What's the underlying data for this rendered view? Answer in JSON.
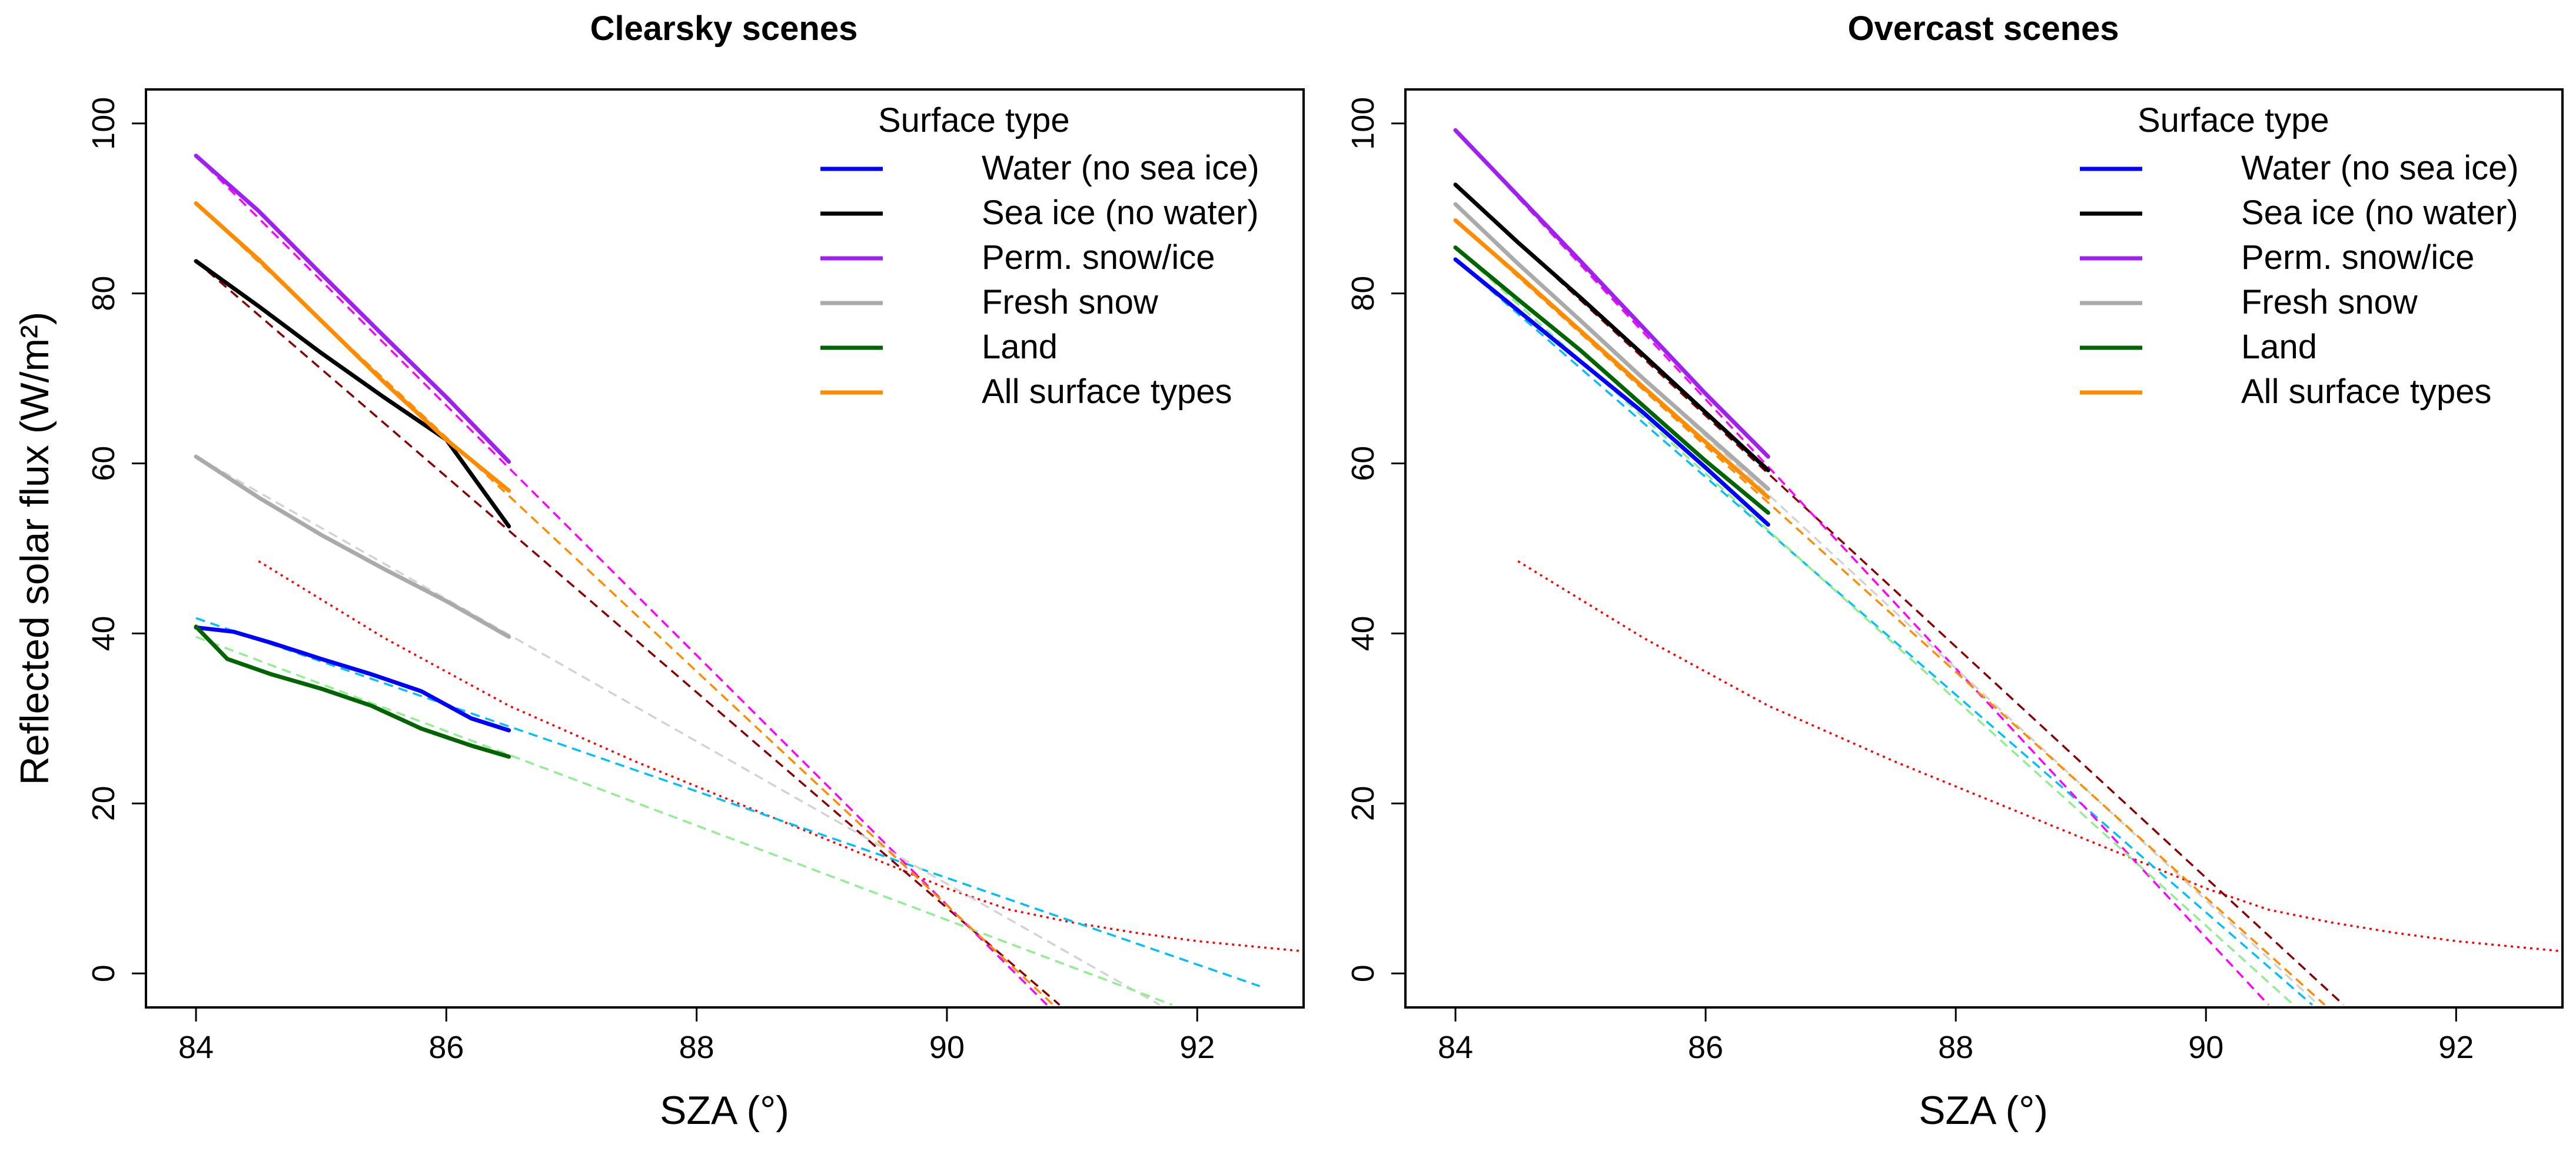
{
  "chart_data": [
    {
      "type": "line",
      "title": "Clearsky scenes",
      "xlabel": "SZA (°)",
      "ylabel": "Reflected solar flux (W/m²)",
      "xlim": [
        83.6,
        92.85
      ],
      "ylim": [
        -4,
        104
      ],
      "xticks": [
        84,
        86,
        88,
        90,
        92
      ],
      "yticks": [
        0,
        20,
        40,
        60,
        80,
        100
      ],
      "legend_title": "Surface type",
      "legend_position": "top-right",
      "series": [
        {
          "name": "Water (no sea ice)",
          "color": "#0000ff",
          "fit_color": "#00bfff",
          "x": [
            84.0,
            84.3,
            84.6,
            85.0,
            85.4,
            85.8,
            86.2,
            86.5
          ],
          "y": [
            40.7,
            40.2,
            38.9,
            37.0,
            35.2,
            33.2,
            30.0,
            28.6
          ],
          "fit_x": [
            84.0,
            92.5
          ],
          "fit_y": [
            41.8,
            -1.5
          ]
        },
        {
          "name": "Sea ice (no water)",
          "color": "#000000",
          "fit_color": "#8b0000",
          "x": [
            84.0,
            84.5,
            85.0,
            85.5,
            86.0,
            86.5
          ],
          "y": [
            83.8,
            78.5,
            73.0,
            67.8,
            62.8,
            52.6
          ],
          "fit_x": [
            84.0,
            90.9
          ],
          "fit_y": [
            83.8,
            -3.7
          ]
        },
        {
          "name": "Perm. snow/ice",
          "color": "#a020f0",
          "fit_color": "#ff00ff",
          "x": [
            84.0,
            84.5,
            85.0,
            85.5,
            86.0,
            86.5
          ],
          "y": [
            96.2,
            89.7,
            82.3,
            75.0,
            67.8,
            60.2
          ],
          "fit_x": [
            84.0,
            90.8
          ],
          "fit_y": [
            96.2,
            -3.7
          ]
        },
        {
          "name": "Fresh snow",
          "color": "#aaaaaa",
          "fit_color": "#d3d3d3",
          "x": [
            84.0,
            84.5,
            85.0,
            85.5,
            86.0,
            86.5
          ],
          "y": [
            60.8,
            56.0,
            51.6,
            47.6,
            43.8,
            39.6
          ],
          "fit_x": [
            84.0,
            91.7
          ],
          "fit_y": [
            60.8,
            -3.7
          ]
        },
        {
          "name": "Land",
          "color": "#006400",
          "fit_color": "#90ee90",
          "x": [
            84.0,
            84.25,
            84.6,
            85.0,
            85.4,
            85.8,
            86.2,
            86.5
          ],
          "y": [
            40.8,
            37.0,
            35.2,
            33.5,
            31.5,
            28.8,
            26.8,
            25.5
          ],
          "fit_x": [
            84.0,
            91.8
          ],
          "fit_y": [
            39.6,
            -3.7
          ]
        },
        {
          "name": "All surface types",
          "color": "#ff8c00",
          "fit_color": "#ff8c00",
          "x": [
            84.0,
            84.5,
            85.0,
            85.5,
            86.0,
            86.5
          ],
          "y": [
            90.6,
            84.0,
            76.8,
            69.6,
            62.8,
            56.8
          ],
          "fit_x": [
            84.0,
            90.85
          ],
          "fit_y": [
            90.6,
            -3.7
          ]
        }
      ],
      "reference_curve": {
        "color": "#ff0000",
        "x": [
          84.5,
          85.5,
          86.5,
          87.5,
          88.5,
          89.5,
          90.0,
          90.5,
          91.0,
          91.5,
          92.0,
          92.85
        ],
        "y": [
          48.5,
          39.5,
          31.5,
          25.0,
          19.0,
          13.0,
          10.0,
          7.5,
          6.0,
          4.8,
          3.8,
          2.6
        ]
      }
    },
    {
      "type": "line",
      "title": "Overcast scenes",
      "xlabel": "SZA (°)",
      "ylabel": "",
      "xlim": [
        83.6,
        92.85
      ],
      "ylim": [
        -4,
        104
      ],
      "xticks": [
        84,
        86,
        88,
        90,
        92
      ],
      "yticks": [
        0,
        20,
        40,
        60,
        80,
        100
      ],
      "legend_title": "Surface type",
      "legend_position": "top-right",
      "series": [
        {
          "name": "Water (no sea ice)",
          "color": "#0000ff",
          "fit_color": "#00bfff",
          "x": [
            84.0,
            84.5,
            85.0,
            85.5,
            86.0,
            86.5
          ],
          "y": [
            84.0,
            78.0,
            72.0,
            66.0,
            59.5,
            52.8
          ],
          "fit_x": [
            84.0,
            90.85
          ],
          "fit_y": [
            84.0,
            -3.7
          ]
        },
        {
          "name": "Sea ice (no water)",
          "color": "#000000",
          "fit_color": "#8b0000",
          "x": [
            84.0,
            84.5,
            85.0,
            85.5,
            86.0,
            86.5
          ],
          "y": [
            92.8,
            86.0,
            79.5,
            72.8,
            66.0,
            59.2
          ],
          "fit_x": [
            84.0,
            91.1
          ],
          "fit_y": [
            92.8,
            -3.7
          ]
        },
        {
          "name": "Perm. snow/ice",
          "color": "#a020f0",
          "fit_color": "#ff00ff",
          "x": [
            84.0,
            84.5,
            85.0,
            85.5,
            86.0,
            86.5
          ],
          "y": [
            99.2,
            91.5,
            83.8,
            76.0,
            68.2,
            60.8
          ],
          "fit_x": [
            84.0,
            90.5
          ],
          "fit_y": [
            99.2,
            -3.7
          ]
        },
        {
          "name": "Fresh snow",
          "color": "#aaaaaa",
          "fit_color": "#d3d3d3",
          "x": [
            84.0,
            84.5,
            85.0,
            85.5,
            86.0,
            86.5
          ],
          "y": [
            90.5,
            83.5,
            76.8,
            70.0,
            63.5,
            57.0
          ],
          "fit_x": [
            84.0,
            90.9
          ],
          "fit_y": [
            90.5,
            -3.7
          ]
        },
        {
          "name": "Land",
          "color": "#006400",
          "fit_color": "#90ee90",
          "x": [
            84.0,
            84.5,
            85.0,
            85.5,
            86.0,
            86.5
          ],
          "y": [
            85.4,
            79.3,
            73.3,
            66.8,
            60.3,
            54.2
          ],
          "fit_x": [
            84.0,
            90.7
          ],
          "fit_y": [
            85.4,
            -3.7
          ]
        },
        {
          "name": "All surface types",
          "color": "#ff8c00",
          "fit_color": "#ff8c00",
          "x": [
            84.0,
            84.5,
            85.0,
            85.5,
            86.0,
            86.5
          ],
          "y": [
            88.6,
            82.2,
            75.6,
            69.0,
            62.5,
            56.0
          ],
          "fit_x": [
            84.0,
            90.95
          ],
          "fit_y": [
            88.6,
            -3.7
          ]
        }
      ],
      "reference_curve": {
        "color": "#ff0000",
        "x": [
          84.5,
          85.5,
          86.5,
          87.5,
          88.5,
          89.5,
          90.0,
          90.5,
          91.0,
          91.5,
          92.0,
          92.85
        ],
        "y": [
          48.5,
          39.5,
          31.5,
          25.0,
          19.0,
          13.0,
          10.0,
          7.5,
          6.0,
          4.8,
          3.8,
          2.6
        ]
      }
    }
  ]
}
